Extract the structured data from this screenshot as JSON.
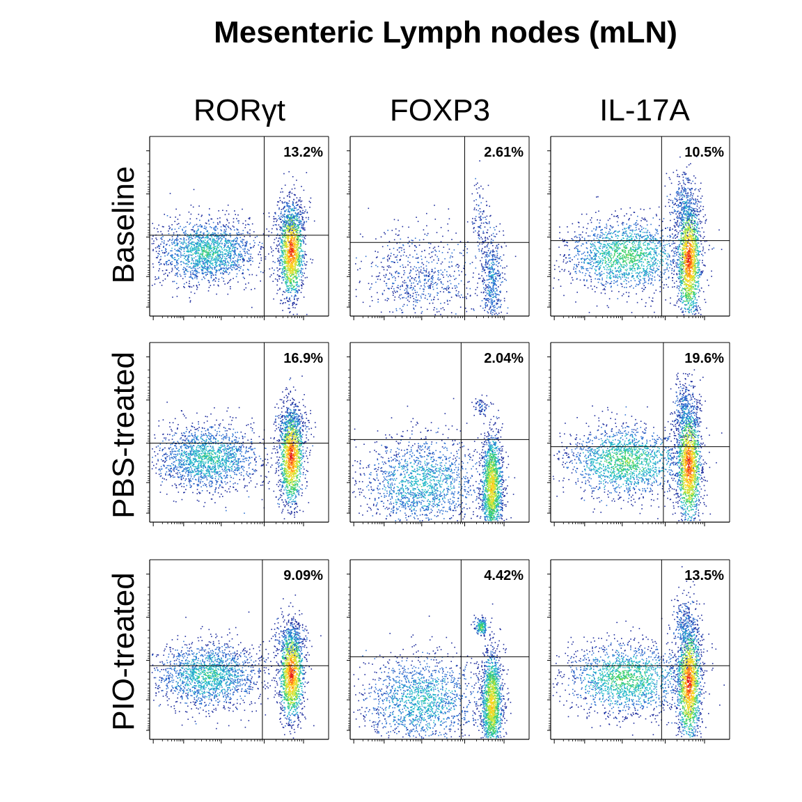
{
  "title": "Mesenteric Lymph nodes (mLN)",
  "columns": [
    "RORγt",
    "FOXP3",
    "IL-17A"
  ],
  "rows": [
    "Baseline",
    "PBS-treated",
    "PIO-treated"
  ],
  "chart_data": {
    "type": "scatter",
    "subtype": "flow-cytometry-density-plot-grid",
    "title": "Mesenteric Lymph nodes (mLN)",
    "column_labels": [
      "RORγt",
      "FOXP3",
      "IL-17A"
    ],
    "row_labels": [
      "Baseline",
      "PBS-treated",
      "PIO-treated"
    ],
    "quadrant_gates": "upper-right percentage shown per panel",
    "color_scale": [
      "#1b2a9c",
      "#2a6fd1",
      "#22b8c9",
      "#3fcf6a",
      "#c8e63a",
      "#ffd21f",
      "#ff7a12",
      "#e3141b"
    ],
    "panels": [
      {
        "row": "Baseline",
        "marker": "RORγt",
        "upper_right_percent": "13.2%"
      },
      {
        "row": "Baseline",
        "marker": "FOXP3",
        "upper_right_percent": "2.61%"
      },
      {
        "row": "Baseline",
        "marker": "IL-17A",
        "upper_right_percent": "10.5%"
      },
      {
        "row": "PBS-treated",
        "marker": "RORγt",
        "upper_right_percent": "16.9%"
      },
      {
        "row": "PBS-treated",
        "marker": "FOXP3",
        "upper_right_percent": "2.04%"
      },
      {
        "row": "PBS-treated",
        "marker": "IL-17A",
        "upper_right_percent": "19.6%"
      },
      {
        "row": "PIO-treated",
        "marker": "RORγt",
        "upper_right_percent": "9.09%"
      },
      {
        "row": "PIO-treated",
        "marker": "FOXP3",
        "upper_right_percent": "4.42%"
      },
      {
        "row": "PIO-treated",
        "marker": "IL-17A",
        "upper_right_percent": "13.5%"
      }
    ]
  }
}
